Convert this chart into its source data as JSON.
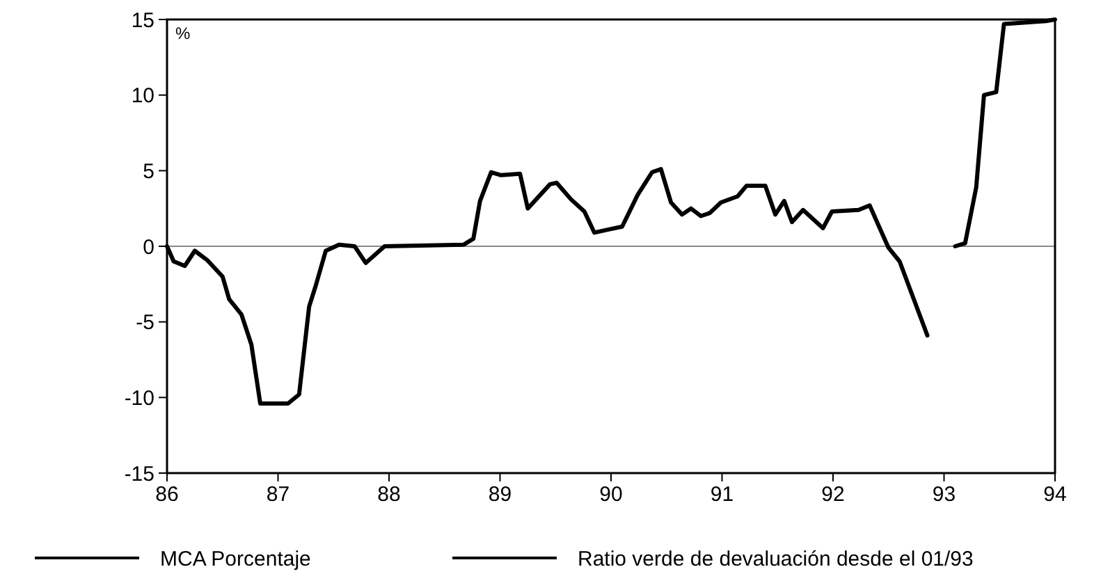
{
  "chart_data": {
    "type": "line",
    "ylabel": "%",
    "xlim": [
      86,
      94
    ],
    "xticks": [
      86,
      87,
      88,
      89,
      90,
      91,
      92,
      93,
      94
    ],
    "ylim": [
      -15,
      15
    ],
    "yticks": [
      -15,
      -10,
      -5,
      0,
      5,
      10,
      15
    ],
    "grid": false,
    "legend": "bottom",
    "line_style": "solid",
    "ref_lines": [
      {
        "axis": "y",
        "value": 0,
        "color": "#888888"
      }
    ],
    "series": [
      {
        "name": "MCA Porcentaje",
        "color": "#000000",
        "x": [
          86.0,
          86.06,
          86.16,
          86.25,
          86.36,
          86.5,
          86.56,
          86.67,
          86.76,
          86.84,
          87.09,
          87.19,
          87.28,
          87.34,
          87.43,
          87.55,
          87.69,
          87.79,
          87.96,
          88.67,
          88.76,
          88.82,
          88.92,
          89.01,
          89.18,
          89.25,
          89.45,
          89.51,
          89.64,
          89.76,
          89.85,
          89.97,
          90.1,
          90.24,
          90.37,
          90.45,
          90.54,
          90.64,
          90.72,
          90.81,
          90.89,
          90.99,
          91.14,
          91.22,
          91.39,
          91.48,
          91.56,
          91.63,
          91.73,
          91.91,
          91.99,
          92.23,
          92.33,
          92.5,
          92.6,
          92.85
        ],
        "values": [
          0,
          -1,
          -1.3,
          -0.3,
          -0.9,
          -2,
          -3.5,
          -4.5,
          -6.5,
          -10.4,
          -10.4,
          -9.8,
          -4,
          -2.6,
          -0.3,
          0.1,
          0,
          -1.1,
          0,
          0.1,
          0.5,
          3,
          4.9,
          4.7,
          4.8,
          2.5,
          4.1,
          4.2,
          3.1,
          2.3,
          0.9,
          1.1,
          1.3,
          3.4,
          4.9,
          5.1,
          2.9,
          2.1,
          2.5,
          2,
          2.2,
          2.9,
          3.3,
          4,
          4,
          2.1,
          3,
          1.6,
          2.4,
          1.2,
          2.3,
          2.4,
          2.7,
          -0.1,
          -1,
          -5.9
        ]
      },
      {
        "name": "Ratio verde de devaluación desde el 01/93",
        "color": "#000000",
        "x": [
          93.1,
          93.19,
          93.29,
          93.36,
          93.47,
          93.54,
          93.92,
          94.0
        ],
        "values": [
          0,
          0.2,
          3.9,
          10,
          10.2,
          14.7,
          14.9,
          15
        ]
      }
    ]
  }
}
